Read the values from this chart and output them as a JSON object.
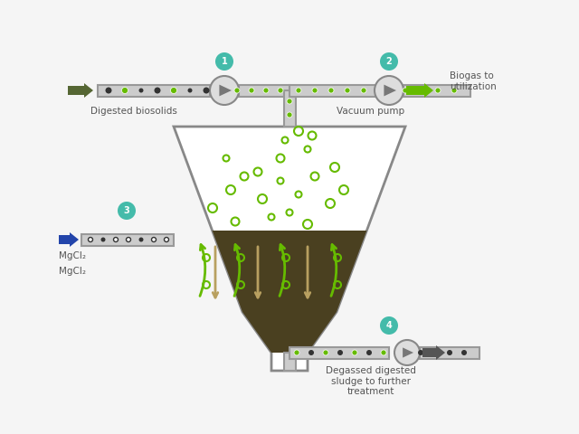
{
  "bg_color": "#f5f5f5",
  "vessel_color": "#ffffff",
  "vessel_border": "#aaaaaa",
  "sludge_color": "#4a4020",
  "pipe_color": "#aaaaaa",
  "pipe_border": "#888888",
  "green_bubble": "#66bb00",
  "dark_dot": "#333333",
  "green_arrow": "#66bb00",
  "tan_arrow": "#b8a060",
  "blue_arrow": "#2244aa",
  "dark_olive_arrow": "#556633",
  "number_circle_color": "#44bbaa",
  "number_text_color": "#ffffff",
  "label_color": "#555555",
  "labels": {
    "1": "Digested biosolids",
    "2": "Vacuum pump",
    "3": "MgCl₂",
    "4": "Degassed digested\nsludge to further\ntreatment"
  },
  "biogas_label": "Biogas to\nutilization"
}
